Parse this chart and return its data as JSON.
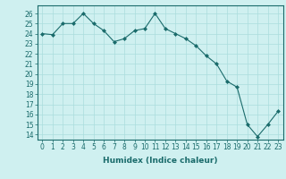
{
  "x": [
    0,
    1,
    2,
    3,
    4,
    5,
    6,
    7,
    8,
    9,
    10,
    11,
    12,
    13,
    14,
    15,
    16,
    17,
    18,
    19,
    20,
    21,
    22,
    23
  ],
  "y": [
    24,
    23.9,
    25,
    25,
    26,
    25,
    24.3,
    23.2,
    23.5,
    24.3,
    24.5,
    26,
    24.5,
    24,
    23.5,
    22.8,
    21.8,
    21,
    19.3,
    18.7,
    15,
    13.8,
    15,
    16.3
  ],
  "line_color": "#1a6b6b",
  "marker": "D",
  "marker_size": 2,
  "bg_color": "#cff0f0",
  "grid_color": "#aadddd",
  "xlabel": "Humidex (Indice chaleur)",
  "xlim": [
    -0.5,
    23.5
  ],
  "ylim": [
    13.5,
    26.8
  ],
  "yticks": [
    14,
    15,
    16,
    17,
    18,
    19,
    20,
    21,
    22,
    23,
    24,
    25,
    26
  ],
  "xticks": [
    0,
    1,
    2,
    3,
    4,
    5,
    6,
    7,
    8,
    9,
    10,
    11,
    12,
    13,
    14,
    15,
    16,
    17,
    18,
    19,
    20,
    21,
    22,
    23
  ],
  "tick_color": "#1a6b6b",
  "label_fontsize": 6.5,
  "tick_fontsize": 5.5,
  "linewidth": 0.8
}
